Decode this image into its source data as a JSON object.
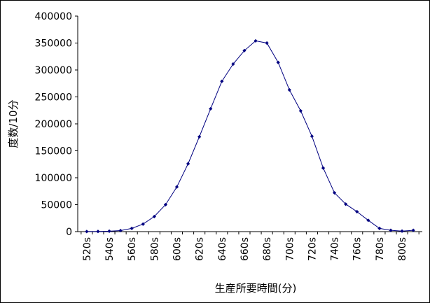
{
  "chart_data": {
    "type": "line",
    "title": "",
    "xlabel": "生産所要時間(分)",
    "ylabel": "度数/10分",
    "ylim": [
      0,
      400000
    ],
    "yticks": [
      0,
      50000,
      100000,
      150000,
      200000,
      250000,
      300000,
      350000,
      400000
    ],
    "ytick_labels": [
      "0",
      "50000",
      "100000",
      "150000",
      "200000",
      "250000",
      "300000",
      "350000",
      "400000"
    ],
    "xtick_labels": [
      "520s",
      "540s",
      "560s",
      "580s",
      "600s",
      "620s",
      "640s",
      "660s",
      "680s",
      "700s",
      "720s",
      "740s",
      "760s",
      "780s",
      "800s"
    ],
    "x": [
      520,
      530,
      540,
      550,
      560,
      570,
      580,
      590,
      600,
      610,
      620,
      630,
      640,
      650,
      660,
      670,
      680,
      690,
      700,
      710,
      720,
      730,
      740,
      750,
      760,
      770,
      780,
      790,
      800,
      810
    ],
    "series": [
      {
        "name": "",
        "color": "#000080",
        "values": [
          200,
          300,
          800,
          2000,
          6000,
          14000,
          28000,
          50000,
          83000,
          126000,
          176000,
          228000,
          279000,
          311000,
          336000,
          354000,
          350000,
          314000,
          263000,
          224000,
          177000,
          118000,
          72000,
          51000,
          37000,
          21000,
          6000,
          2500,
          1000,
          2500
        ]
      }
    ],
    "grid": false,
    "legend": "none",
    "axis_color": "#000000"
  }
}
